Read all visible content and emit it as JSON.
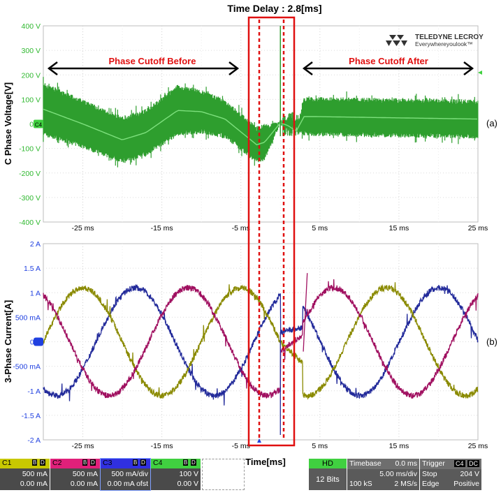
{
  "title": "Time Delay : 2.8[ms]",
  "brand": {
    "name": "TELEDYNE LECROY",
    "tagline": "Everywhereyoulook™"
  },
  "annotations": {
    "before": "Phase Cutoff Before",
    "after": "Phase Cutoff After",
    "label_a": "(a)",
    "label_b": "(b)",
    "xlabel": "Time[ms]"
  },
  "chart_data": [
    {
      "type": "line",
      "ylabel": "C Phase Voltage[V]",
      "xlim": [
        -30,
        25
      ],
      "ylim": [
        -400,
        400
      ],
      "x_ticks": [
        "-25 ms",
        "-15 ms",
        "-5 ms",
        "5 ms",
        "15 ms",
        "25 ms"
      ],
      "y_ticks": [
        "400 V",
        "300 V",
        "200 V",
        "100 V",
        "0 V",
        "-100 V",
        "-200 V",
        "-300 V",
        "-400 V"
      ],
      "channel_marker": "C4",
      "series": [
        {
          "color": "#2e9e2e",
          "envelope_x": [
            -30,
            -25,
            -20,
            -17,
            -13,
            -10,
            -7,
            -3,
            -2,
            0,
            1,
            2,
            3,
            4,
            25
          ],
          "envelope_top": [
            170,
            100,
            30,
            60,
            160,
            140,
            100,
            -10,
            0,
            10,
            5,
            -20,
            110,
            110,
            100
          ],
          "envelope_bot": [
            -50,
            -100,
            -160,
            -130,
            -50,
            -40,
            -60,
            -160,
            -150,
            0,
            -20,
            -40,
            -50,
            -50,
            -60
          ]
        }
      ]
    },
    {
      "type": "line",
      "ylabel": "3-Phase Current[A]",
      "xlim": [
        -30,
        25
      ],
      "ylim": [
        -2,
        2
      ],
      "x_ticks": [
        "-25 ms",
        "-15 ms",
        "-5 ms",
        "5 ms",
        "15 ms",
        "25 ms"
      ],
      "y_ticks": [
        "2 A",
        "1.5 A",
        "1 A",
        "500 mA",
        "0 A",
        "-500 mA",
        "-1 A",
        "-1.5 A",
        "-2 A"
      ],
      "amplitude_before": 1.1,
      "amplitude_after": 1.1,
      "period_ms": 20,
      "cutoff_ms": [
        0,
        2.8
      ],
      "series": [
        {
          "color": "#222a9a",
          "phase_deg": 60
        },
        {
          "color": "#8a8a00",
          "phase_deg": 180
        },
        {
          "color": "#a01060",
          "phase_deg": 300
        }
      ]
    }
  ],
  "channels": [
    {
      "name": "C1",
      "color": "#c8c800",
      "line1": "500 mA",
      "line2": "0.00 mA"
    },
    {
      "name": "C2",
      "color": "#e0207a",
      "line1": "500 mA",
      "line2": "0.00 mA"
    },
    {
      "name": "C3",
      "color": "#3030e0",
      "line1": "500 mA/div",
      "line2": "0.00 mA ofst"
    },
    {
      "name": "C4",
      "color": "#40d040",
      "line1": "100 V",
      "line2": "0.00 V"
    }
  ],
  "status": {
    "hd": "HD",
    "bits": "12 Bits",
    "timebase_label": "Timebase",
    "timebase_val": "0.0 ms",
    "div": "5.00 ms/div",
    "ks": "100 kS",
    "rate": "2 MS/s",
    "trigger_label": "Trigger",
    "trig_ch": "C4",
    "trig_cp": "DC",
    "stop": "Stop",
    "level": "204 V",
    "edge": "Edge",
    "pol": "Positive"
  },
  "chip_letters": {
    "b": "B",
    "d": "D"
  }
}
